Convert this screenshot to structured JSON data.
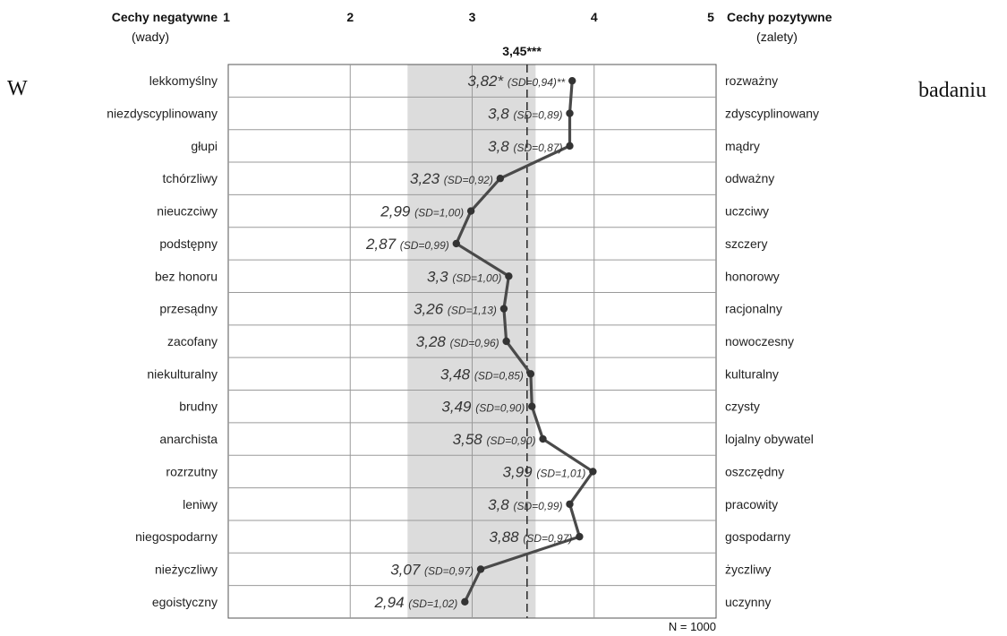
{
  "surrounding_text": {
    "left": "W",
    "right": "badaniu"
  },
  "chart_data": {
    "type": "line",
    "left_header": "Cechy negatywne",
    "left_subheader": "(wady)",
    "right_header": "Cechy pozytywne",
    "right_subheader": "(zalety)",
    "x_ticks": [
      "1",
      "2",
      "3",
      "4",
      "5"
    ],
    "xlim": [
      1,
      5
    ],
    "mean_value": 3.45,
    "mean_label": "3,45***",
    "shaded_band": [
      2.47,
      3.52
    ],
    "footnote": "N = 1000",
    "grid": true,
    "colors": {
      "line": "#4a4a4a",
      "point": "#333333",
      "band": "#dcdcdc",
      "mean": "#333333"
    },
    "items": [
      {
        "negative": "lekkomyślny",
        "positive": "rozważny",
        "value": 3.82,
        "label": "3,82*",
        "sd": "(SD=0,94)**"
      },
      {
        "negative": "niezdyscyplinowany",
        "positive": "zdyscyplinowany",
        "value": 3.8,
        "label": "3,8",
        "sd": "(SD=0,89)"
      },
      {
        "negative": "głupi",
        "positive": "mądry",
        "value": 3.8,
        "label": "3,8",
        "sd": "(SD=0,87)"
      },
      {
        "negative": "tchórzliwy",
        "positive": "odważny",
        "value": 3.23,
        "label": "3,23",
        "sd": "(SD=0,92)"
      },
      {
        "negative": "nieuczciwy",
        "positive": "uczciwy",
        "value": 2.99,
        "label": "2,99",
        "sd": "(SD=1,00)"
      },
      {
        "negative": "podstępny",
        "positive": "szczery",
        "value": 2.87,
        "label": "2,87",
        "sd": "(SD=0,99)"
      },
      {
        "negative": "bez honoru",
        "positive": "honorowy",
        "value": 3.3,
        "label": "3,3",
        "sd": "(SD=1,00)"
      },
      {
        "negative": "przesądny",
        "positive": "racjonalny",
        "value": 3.26,
        "label": "3,26",
        "sd": "(SD=1,13)"
      },
      {
        "negative": "zacofany",
        "positive": "nowoczesny",
        "value": 3.28,
        "label": "3,28",
        "sd": "(SD=0,96)"
      },
      {
        "negative": "niekulturalny",
        "positive": "kulturalny",
        "value": 3.48,
        "label": "3,48",
        "sd": "(SD=0,85)"
      },
      {
        "negative": "brudny",
        "positive": "czysty",
        "value": 3.49,
        "label": "3,49",
        "sd": "(SD=0,90)"
      },
      {
        "negative": "anarchista",
        "positive": "lojalny obywatel",
        "value": 3.58,
        "label": "3,58",
        "sd": "(SD=0,90)"
      },
      {
        "negative": "rozrzutny",
        "positive": "oszczędny",
        "value": 3.99,
        "label": "3,99",
        "sd": "(SD=1,01)"
      },
      {
        "negative": "leniwy",
        "positive": "pracowity",
        "value": 3.8,
        "label": "3,8",
        "sd": "(SD=0,99)"
      },
      {
        "negative": "niegospodarny",
        "positive": "gospodarny",
        "value": 3.88,
        "label": "3,88",
        "sd": "(SD=0,97)"
      },
      {
        "negative": "nieżyczliwy",
        "positive": "życzliwy",
        "value": 3.07,
        "label": "3,07",
        "sd": "(SD=0,97)"
      },
      {
        "negative": "egoistyczny",
        "positive": "uczynny",
        "value": 2.94,
        "label": "2,94",
        "sd": "(SD=1,02)"
      }
    ]
  }
}
